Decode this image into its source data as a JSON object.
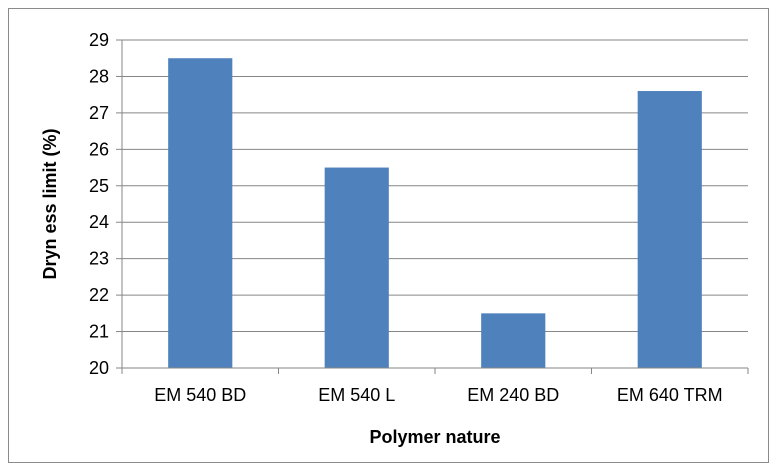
{
  "chart_data": {
    "type": "bar",
    "title": "",
    "xlabel": "Polymer nature",
    "ylabel": "Dryn ess limit (%)",
    "categories": [
      "EM 540 BD",
      "EM 540 L",
      "EM 240 BD",
      "EM 640 TRM"
    ],
    "values": [
      28.5,
      25.5,
      21.5,
      27.6
    ],
    "ylim": [
      20,
      29
    ],
    "yticks": [
      "20",
      "21",
      "22",
      "23",
      "24",
      "25",
      "26",
      "27",
      "28",
      "29"
    ],
    "grid": true,
    "legend": "none",
    "bar_color": "#4f81bd",
    "grid_color": "#868686"
  }
}
